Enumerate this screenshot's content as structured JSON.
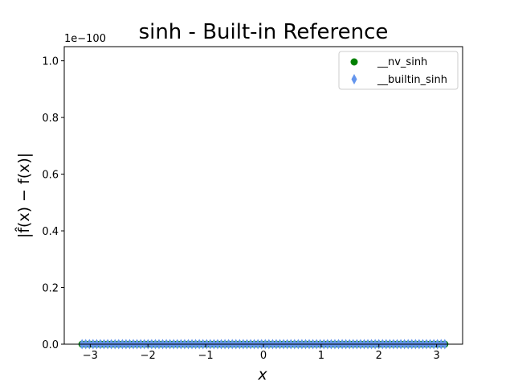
{
  "chart_data": {
    "type": "scatter",
    "title": "sinh - Built-in Reference",
    "xlabel": "x",
    "ylabel": "|f̂(x) − f(x)|",
    "y_offset_text": "1e−100",
    "xlim": [
      -3.45,
      3.45
    ],
    "ylim": [
      0,
      1.05
    ],
    "x_ticks": [
      -3,
      -2,
      -1,
      0,
      1,
      2,
      3
    ],
    "x_tick_labels": [
      "−3",
      "−2",
      "−1",
      "0",
      "1",
      "2",
      "3"
    ],
    "y_ticks": [
      0,
      0.2,
      0.4,
      0.6,
      0.8,
      1.0
    ],
    "y_tick_labels": [
      "0.0",
      "0.2",
      "0.4",
      "0.6",
      "0.8",
      "1.0"
    ],
    "grid": false,
    "legend_position": "top-right",
    "sample_range": [
      -3.14159,
      3.14159
    ],
    "sample_count": 100,
    "series": [
      {
        "name": "__nv_sinh",
        "marker": "circle",
        "color": "#008000",
        "y_value": 0
      },
      {
        "name": "__builtin_sinh",
        "marker": "thin_diamond",
        "color": "#6495ED",
        "y_value": 0
      }
    ]
  }
}
